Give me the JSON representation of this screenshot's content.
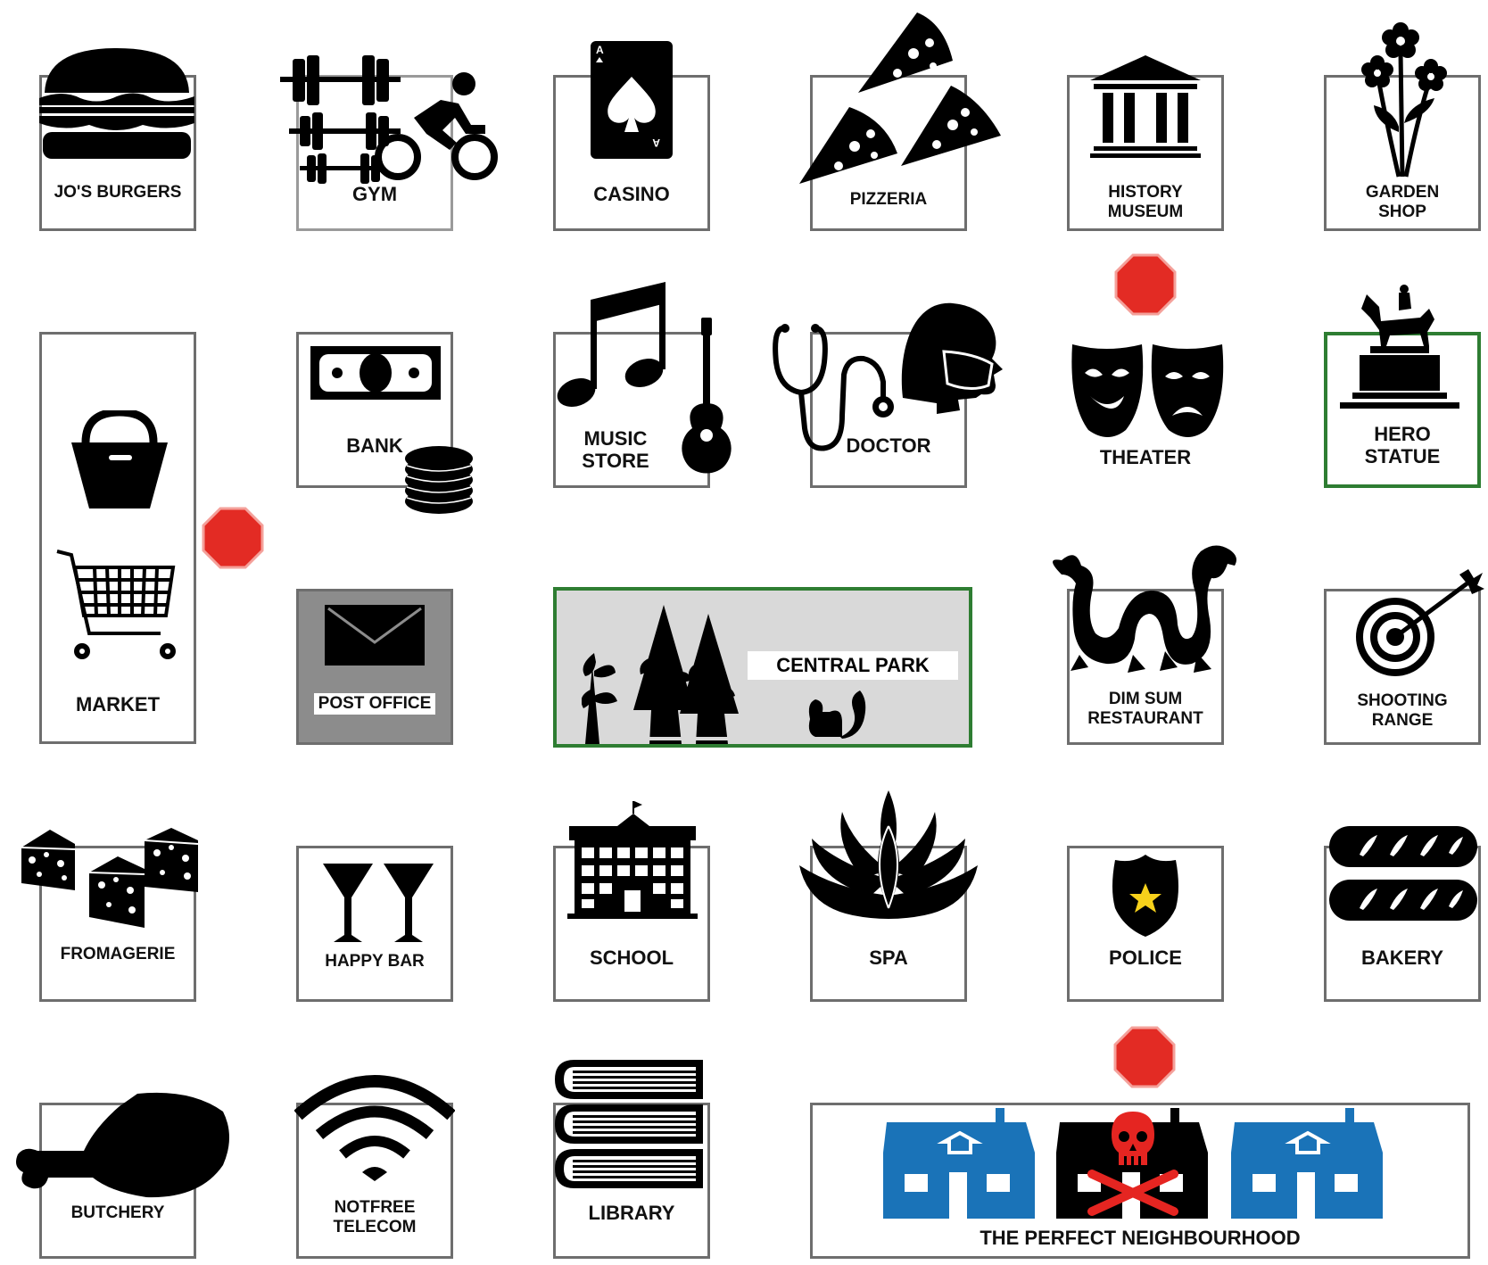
{
  "title": "",
  "colors": {
    "border": "#6e6e6e",
    "park_border": "#2e7d32",
    "park_fill": "#d9d9d9",
    "post_fill": "#8c8c8c",
    "stop_red": "#e32b24",
    "house_blue": "#1a73b8",
    "skull_red": "#e52521",
    "star_yellow": "#f7d11b"
  },
  "places": {
    "jos_burgers": {
      "label": "JO'S BURGERS",
      "icon": "burger-icon"
    },
    "gym": {
      "label": "GYM",
      "icon": "dumbbells-cyclist-icon"
    },
    "casino": {
      "label": "CASINO",
      "icon": "ace-of-spades-icon"
    },
    "pizzeria": {
      "label": "PIZZERIA",
      "icon": "pizza-slice-icon"
    },
    "history_museum": {
      "line1": "HISTORY",
      "line2": "MUSEUM",
      "icon": "museum-icon"
    },
    "garden_shop": {
      "line1": "GARDEN",
      "line2": "SHOP",
      "icon": "flowers-icon"
    },
    "market": {
      "label": "MARKET",
      "icon": "bag-cart-icon"
    },
    "bank": {
      "label": "BANK",
      "icon": "money-coins-icon"
    },
    "music_store": {
      "line1": "MUSIC",
      "line2": "STORE",
      "icon": "note-guitar-icon"
    },
    "doctor": {
      "label": "DOCTOR",
      "icon": "stethoscope-icon"
    },
    "theater": {
      "label": "THEATER",
      "icon": "masks-icon"
    },
    "hero_statue": {
      "line1": "HERO",
      "line2": "STATUE",
      "icon": "equestrian-statue-icon"
    },
    "post_office": {
      "label": "POST OFFICE",
      "icon": "envelope-icon"
    },
    "central_park": {
      "label": "CENTRAL PARK",
      "icon": "trees-squirrel-icon"
    },
    "dim_sum": {
      "line1": "DIM SUM",
      "line2": "RESTAURANT",
      "icon": "dragon-icon"
    },
    "shooting_range": {
      "line1": "SHOOTING",
      "line2": "RANGE",
      "icon": "target-icon"
    },
    "fromagerie": {
      "label": "FROMAGERIE",
      "icon": "cheese-icon"
    },
    "happy_bar": {
      "label": "HAPPY BAR",
      "icon": "cocktail-glasses-icon"
    },
    "school": {
      "label": "SCHOOL",
      "icon": "school-building-icon"
    },
    "spa": {
      "label": "SPA",
      "icon": "lotus-icon"
    },
    "police": {
      "label": "POLICE",
      "icon": "badge-icon"
    },
    "bakery": {
      "label": "BAKERY",
      "icon": "bread-icon"
    },
    "butchery": {
      "label": "BUTCHERY",
      "icon": "drumstick-icon"
    },
    "notfree_telecom": {
      "line1": "NOTFREE",
      "line2": "TELECOM",
      "icon": "wifi-icon"
    },
    "library": {
      "label": "LIBRARY",
      "icon": "books-icon"
    },
    "perfect_neighbourhood": {
      "label": "THE PERFECT NEIGHBOURHOOD",
      "icon": "houses-skull-icon"
    }
  }
}
